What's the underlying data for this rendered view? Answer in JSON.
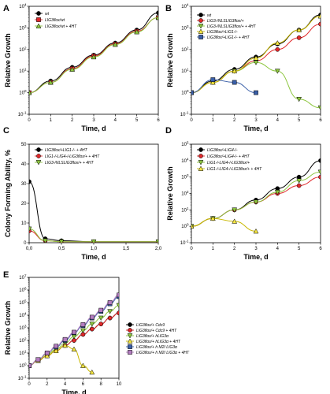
{
  "figure": {
    "colors": {
      "black": "#000000",
      "red": "#e0282a",
      "green": "#8dc63f",
      "yellow": "#f5e642",
      "blue": "#3a5fa8",
      "purple": "#b37cc0",
      "gray": "#999999"
    }
  },
  "chart_data": [
    {
      "panel": "A",
      "type": "line",
      "xlabel": "Time, d",
      "ylabel": "Relative Growth",
      "xlim": [
        0,
        6
      ],
      "ylim_log10": [
        -1,
        4
      ],
      "y_scale": "log",
      "x_ticks": [
        "0",
        "1",
        "2",
        "3",
        "4",
        "5",
        "6"
      ],
      "y_ticks": [
        "10-1",
        "100",
        "101",
        "102",
        "103",
        "104"
      ],
      "legend_position": "top-left",
      "series": [
        {
          "name": "wt",
          "color": "#000000",
          "marker": "circle",
          "x": [
            0,
            1,
            2,
            3,
            4,
            5,
            6
          ],
          "y": [
            1,
            3.5,
            15,
            55,
            200,
            800,
            5000
          ]
        },
        {
          "name": "LIG3flox/wt",
          "color": "#e0282a",
          "marker": "square",
          "x": [
            0,
            1,
            2,
            3,
            4,
            5,
            6
          ],
          "y": [
            1,
            3,
            13,
            50,
            180,
            700,
            3000
          ]
        },
        {
          "name": "LIG3flox/wt + 4HT",
          "color": "#8dc63f",
          "marker": "triangle-up",
          "x": [
            0,
            1,
            2,
            3,
            4,
            5,
            6
          ],
          "y": [
            1,
            3,
            12,
            45,
            170,
            650,
            3000
          ]
        }
      ]
    },
    {
      "panel": "B",
      "type": "line",
      "xlabel": "Time, d",
      "ylabel": "Relative Growth",
      "xlim": [
        0,
        6
      ],
      "ylim_log10": [
        -1,
        4
      ],
      "y_scale": "log",
      "x_ticks": [
        "0",
        "1",
        "2",
        "3",
        "4",
        "5",
        "6"
      ],
      "y_ticks": [
        "10-1",
        "100",
        "101",
        "102",
        "103",
        "104"
      ],
      "legend_position": "top-left",
      "series": [
        {
          "name": "wt",
          "color": "#000000",
          "marker": "circle",
          "x": [
            0,
            1,
            2,
            3,
            4,
            5,
            6
          ],
          "y": [
            1,
            3.5,
            12,
            45,
            180,
            800,
            4000
          ]
        },
        {
          "name": "LIG3-/NLSLIG3flox/+",
          "color": "#e0282a",
          "marker": "circle",
          "x": [
            0,
            1,
            2,
            3,
            4,
            5,
            6
          ],
          "y": [
            1,
            3,
            10,
            30,
            100,
            350,
            1500
          ]
        },
        {
          "name": "LIG3-/NLSLIG3flox/+ + 4HT",
          "color": "#8dc63f",
          "marker": "triangle-down",
          "x": [
            0,
            1,
            2,
            3,
            4,
            5,
            6
          ],
          "y": [
            1,
            3,
            10,
            25,
            10,
            0.5,
            0.2
          ]
        },
        {
          "name": "LIG3flox/+LIG1-/-",
          "color": "#f5e642",
          "marker": "triangle-up",
          "x": [
            0,
            1,
            2,
            3,
            4,
            5,
            6
          ],
          "y": [
            1,
            3,
            10,
            40,
            200,
            800,
            3500
          ]
        },
        {
          "name": "LIG3flox/+LIG1-/- + 4HT",
          "color": "#3a5fa8",
          "marker": "square",
          "x": [
            0,
            1,
            2,
            3
          ],
          "y": [
            1,
            4,
            3,
            1
          ]
        }
      ]
    },
    {
      "panel": "C",
      "type": "line",
      "xlabel": "Time, d",
      "ylabel": "Colony Forming Ability, %",
      "xlim": [
        0,
        2
      ],
      "ylim": [
        0,
        50
      ],
      "x_ticks": [
        "0,0",
        "0,5",
        "1,0",
        "1,5",
        "2,0"
      ],
      "y_ticks": [
        "0",
        "10",
        "20",
        "30",
        "40",
        "50"
      ],
      "legend_position": "top-left",
      "series": [
        {
          "name": "LIG3flox/+LIG1-/- + 4HT",
          "color": "#000000",
          "marker": "circle",
          "x": [
            0,
            0.25,
            0.5,
            1,
            2
          ],
          "y": [
            31,
            2,
            1,
            0.5,
            0.5
          ]
        },
        {
          "name": "LIG1-/-LIG4-/-LIG3flox/+ + 4HT",
          "color": "#e0282a",
          "marker": "circle",
          "x": [
            0,
            0.25,
            0.5,
            1,
            2
          ],
          "y": [
            6,
            1,
            0.5,
            0.5,
            0.5
          ]
        },
        {
          "name": "LIG3-/NLSLIG3flox/+ + 4HT",
          "color": "#8dc63f",
          "marker": "triangle-down",
          "x": [
            0,
            0.25,
            0.5,
            1,
            2
          ],
          "y": [
            7,
            1,
            0.5,
            0.5,
            0.5
          ]
        }
      ]
    },
    {
      "panel": "D",
      "type": "line",
      "xlabel": "Time, d",
      "ylabel": "Relative Growth",
      "xlim": [
        0,
        6
      ],
      "ylim_log10": [
        -1,
        5
      ],
      "y_scale": "log",
      "x_ticks": [
        "0",
        "1",
        "2",
        "3",
        "4",
        "5",
        "6"
      ],
      "y_ticks": [
        "10-1",
        "100",
        "101",
        "102",
        "103",
        "104",
        "105"
      ],
      "legend_position": "top-left",
      "series": [
        {
          "name": "LIG3flox/+LIG4-/-",
          "color": "#000000",
          "marker": "circle",
          "x": [
            0,
            1,
            2,
            3,
            4,
            5,
            6
          ],
          "y": [
            1,
            3,
            10,
            40,
            200,
            1000,
            10000
          ]
        },
        {
          "name": "LIG3flox/+LIG4-/- + 4HT",
          "color": "#e0282a",
          "marker": "circle",
          "x": [
            0,
            1,
            2,
            3,
            4,
            5,
            6
          ],
          "y": [
            1,
            3,
            10,
            30,
            100,
            300,
            1000
          ]
        },
        {
          "name": "LIG1-/-LIG4-/-LIG3flox/+",
          "color": "#8dc63f",
          "marker": "triangle-down",
          "x": [
            0,
            1,
            2,
            3,
            4,
            5,
            6
          ],
          "y": [
            1,
            3,
            10,
            30,
            120,
            600,
            2000
          ]
        },
        {
          "name": "LIG1-/-LIG4-/-LIG3flox/+ + 4HT",
          "color": "#f5e642",
          "marker": "triangle-up",
          "x": [
            0,
            1,
            2,
            3
          ],
          "y": [
            1,
            3,
            2,
            0.5
          ]
        }
      ]
    },
    {
      "panel": "E",
      "type": "line",
      "xlabel": "Time, d",
      "ylabel": "Relative Growth",
      "xlim": [
        0,
        10
      ],
      "ylim_log10": [
        -1,
        7
      ],
      "y_scale": "log",
      "x_ticks": [
        "0",
        "2",
        "4",
        "6",
        "8",
        "10"
      ],
      "y_ticks": [
        "10-1",
        "100",
        "101",
        "102",
        "103",
        "104",
        "105",
        "106",
        "107"
      ],
      "legend_position": "right",
      "series": [
        {
          "name": "LIG3flox/+ Cdc9",
          "color": "#000000",
          "marker": "circle",
          "x": [
            0,
            1,
            2,
            3,
            4,
            5,
            6,
            7,
            8,
            9,
            10
          ],
          "y": [
            1,
            2.5,
            6,
            15,
            40,
            100,
            300,
            800,
            2000,
            6000,
            15000
          ]
        },
        {
          "name": "LIG3flox/+ Cdc9 + 4HT",
          "color": "#e0282a",
          "marker": "circle",
          "x": [
            0,
            1,
            2,
            3,
            4,
            5,
            6,
            7,
            8,
            9,
            10
          ],
          "y": [
            1,
            2.5,
            6,
            15,
            40,
            100,
            300,
            800,
            2000,
            6000,
            15000
          ]
        },
        {
          "name": "LIG3flox/+ hLIG3α",
          "color": "#8dc63f",
          "marker": "triangle-down",
          "x": [
            0,
            1,
            2,
            3,
            4,
            5,
            6,
            7,
            8,
            9,
            10
          ],
          "y": [
            1,
            3,
            8,
            20,
            60,
            200,
            600,
            2000,
            6000,
            20000,
            60000
          ]
        },
        {
          "name": "LIG3flox/+ hLIG3α + 4HT",
          "color": "#f5e642",
          "marker": "triangle-up",
          "x": [
            0,
            1,
            2,
            3,
            4,
            5,
            6,
            7
          ],
          "y": [
            1,
            2.5,
            6,
            15,
            40,
            20,
            1,
            0.3
          ]
        },
        {
          "name": "LIG3flox/+ h M2I LIG3α",
          "color": "#3a5fa8",
          "marker": "square",
          "x": [
            0,
            1,
            2,
            3,
            4,
            5,
            6,
            7,
            8,
            9,
            10
          ],
          "y": [
            1,
            3,
            10,
            30,
            100,
            400,
            1500,
            6000,
            20000,
            80000,
            300000
          ]
        },
        {
          "name": "LIG3flox/+ h M2I LIG3α + 4HT",
          "color": "#b37cc0",
          "marker": "square",
          "x": [
            0,
            1,
            2,
            3,
            4,
            5,
            6,
            7,
            8,
            9,
            10
          ],
          "y": [
            1,
            3,
            10,
            35,
            120,
            450,
            1800,
            7000,
            25000,
            100000,
            400000
          ]
        }
      ]
    }
  ]
}
